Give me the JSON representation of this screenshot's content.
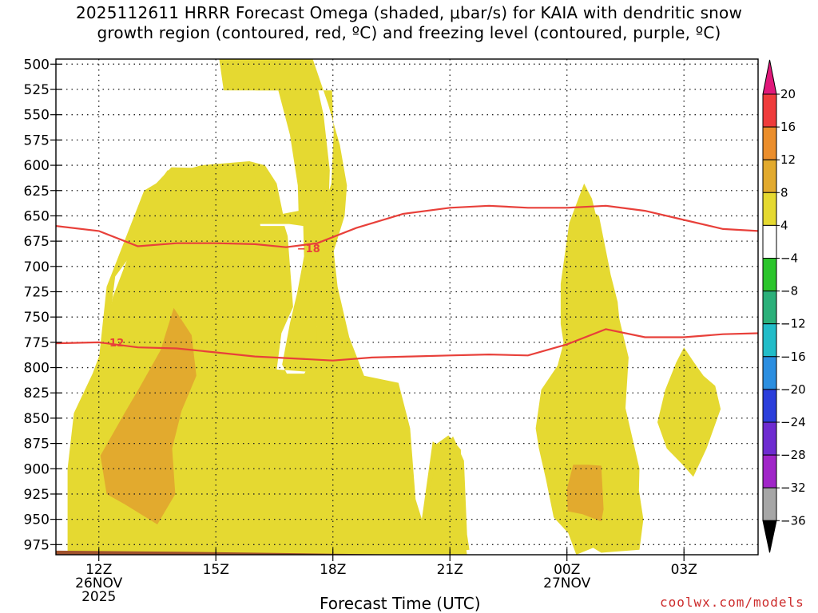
{
  "title_line1": "2025112611 HRRR Forecast Omega (shaded, μbar/s) for KAIA with dendritic snow",
  "title_line2": "growth region (contoured, red, ºC) and freezing level (contoured, purple, ºC)",
  "xlabel": "Forecast Time (UTC)",
  "credit": "coolwx.com/models",
  "chart_data": {
    "type": "contour",
    "x_axis": {
      "unit": "hour",
      "range": [
        10.9,
        28.9
      ],
      "ticks": [
        {
          "value": 12,
          "label": "12Z",
          "sub1": "26NOV",
          "sub2": "2025"
        },
        {
          "value": 15,
          "label": "15Z",
          "sub1": "",
          "sub2": ""
        },
        {
          "value": 18,
          "label": "18Z",
          "sub1": "",
          "sub2": ""
        },
        {
          "value": 21,
          "label": "21Z",
          "sub1": "",
          "sub2": ""
        },
        {
          "value": 24,
          "label": "00Z",
          "sub1": "27NOV",
          "sub2": ""
        },
        {
          "value": 27,
          "label": "03Z",
          "sub1": "",
          "sub2": ""
        }
      ]
    },
    "y_axis": {
      "unit": "hPa",
      "reversed": true,
      "range": [
        495,
        985
      ],
      "ticks": [
        500,
        525,
        550,
        575,
        600,
        625,
        650,
        675,
        700,
        725,
        750,
        775,
        800,
        825,
        850,
        875,
        900,
        925,
        950,
        975
      ]
    },
    "grid": true,
    "terrain_color": "#a0522d",
    "omega_regions": [
      {
        "level": "4 to 8",
        "color": "#e5d931",
        "points": [
          [
            13.12,
            880
          ],
          [
            13.26,
            835
          ],
          [
            13.66,
            790
          ],
          [
            14.74,
            783
          ],
          [
            15.9,
            787
          ],
          [
            15.9,
            800
          ],
          [
            18.02,
            806
          ],
          [
            19.28,
            843
          ],
          [
            19.72,
            878
          ],
          [
            19.84,
            943
          ],
          [
            19.98,
            960
          ],
          [
            20.26,
            955
          ],
          [
            20.56,
            873
          ],
          [
            20.82,
            880
          ],
          [
            21.08,
            868
          ],
          [
            21.36,
            892
          ],
          [
            21.44,
            965
          ],
          [
            21.5,
            980
          ],
          [
            19.55,
            990
          ],
          [
            12.3,
            990
          ],
          [
            11.5,
            983
          ],
          [
            11.42,
            958
          ],
          [
            11.38,
            910
          ],
          [
            11.62,
            840
          ],
          [
            11.88,
            818
          ],
          [
            12.06,
            795
          ],
          [
            12.22,
            770
          ],
          [
            12.42,
            710
          ],
          [
            12.8,
            690
          ],
          [
            13.26,
            645
          ],
          [
            13.52,
            618
          ],
          [
            13.76,
            605
          ],
          [
            14.44,
            605
          ],
          [
            15.86,
            608
          ],
          [
            16.02,
            620
          ],
          [
            16.02,
            658
          ],
          [
            16.88,
            658
          ],
          [
            17.24,
            660
          ],
          [
            17.26,
            690
          ],
          [
            17.08,
            727
          ],
          [
            16.9,
            756
          ],
          [
            16.7,
            797
          ],
          [
            16.82,
            806
          ],
          [
            17.86,
            806
          ],
          [
            17.74,
            790
          ],
          [
            17.56,
            755
          ],
          [
            17.4,
            720
          ],
          [
            17.44,
            690
          ],
          [
            17.7,
            660
          ],
          [
            17.9,
            627
          ],
          [
            17.92,
            605
          ],
          [
            17.76,
            550
          ],
          [
            17.56,
            515
          ],
          [
            17.2,
            493
          ],
          [
            15.08,
            493
          ],
          [
            15.2,
            526
          ],
          [
            16.6,
            526
          ],
          [
            16.9,
            570
          ],
          [
            17.1,
            620
          ],
          [
            17.12,
            645
          ],
          [
            16.72,
            648
          ],
          [
            16.56,
            618
          ],
          [
            16.26,
            600
          ],
          [
            15.86,
            596
          ],
          [
            14.62,
            600
          ],
          [
            13.9,
            608
          ],
          [
            13.16,
            625
          ],
          [
            12.2,
            720
          ],
          [
            11.98,
            800
          ],
          [
            11.68,
            845
          ],
          [
            11.52,
            895
          ],
          [
            11.62,
            960
          ],
          [
            12.22,
            982
          ],
          [
            13.5,
            985
          ],
          [
            14.44,
            980
          ],
          [
            13.86,
            925
          ],
          [
            13.1,
            935
          ],
          [
            13.16,
            885
          ]
        ]
      },
      {
        "level": "4 to 8",
        "color": "#e5d931",
        "points": [
          [
            11.2,
            900
          ],
          [
            11.36,
            845
          ],
          [
            11.84,
            806
          ],
          [
            12.12,
            777
          ],
          [
            12.36,
            730
          ],
          [
            12.76,
            690
          ],
          [
            13.06,
            660
          ],
          [
            13.42,
            620
          ],
          [
            13.86,
            602
          ],
          [
            15.98,
            604
          ],
          [
            16.14,
            660
          ],
          [
            16.76,
            660
          ],
          [
            16.84,
            670
          ],
          [
            16.98,
            740
          ],
          [
            16.68,
            766
          ],
          [
            16.54,
            808
          ],
          [
            17.24,
            808
          ],
          [
            17.58,
            784
          ],
          [
            17.58,
            760
          ],
          [
            17.3,
            720
          ],
          [
            17.28,
            694
          ],
          [
            17.58,
            664
          ],
          [
            17.96,
            618
          ],
          [
            18.02,
            568
          ],
          [
            17.98,
            526
          ],
          [
            16.02,
            526
          ],
          [
            15.52,
            520
          ],
          [
            15.12,
            490
          ],
          [
            17.44,
            490
          ],
          [
            17.88,
            540
          ],
          [
            18.18,
            580
          ],
          [
            18.36,
            620
          ],
          [
            18.3,
            650
          ],
          [
            18.02,
            685
          ],
          [
            18.12,
            720
          ],
          [
            18.42,
            770
          ],
          [
            18.8,
            808
          ],
          [
            19.68,
            815
          ],
          [
            19.98,
            860
          ],
          [
            20.12,
            930
          ],
          [
            20.28,
            950
          ],
          [
            20.58,
            905
          ],
          [
            20.6,
            877
          ],
          [
            20.96,
            867
          ],
          [
            21.28,
            881
          ],
          [
            21.32,
            957
          ],
          [
            21.44,
            985
          ],
          [
            11.2,
            985
          ]
        ]
      },
      {
        "level": "4 to 8",
        "color": "#e5d931",
        "points": [
          [
            23.98,
            922
          ],
          [
            24.08,
            840
          ],
          [
            23.98,
            792
          ],
          [
            23.84,
            757
          ],
          [
            23.84,
            717
          ],
          [
            24.06,
            657
          ],
          [
            24.44,
            618
          ],
          [
            24.64,
            633
          ],
          [
            24.98,
            687
          ],
          [
            25.3,
            735
          ],
          [
            25.44,
            790
          ],
          [
            25.28,
            840
          ],
          [
            25.4,
            866
          ],
          [
            25.76,
            900
          ],
          [
            25.96,
            950
          ],
          [
            25.86,
            980
          ],
          [
            24.88,
            983
          ],
          [
            24.02,
            963
          ],
          [
            23.66,
            948
          ],
          [
            23.46,
            910
          ],
          [
            23.28,
            880
          ],
          [
            23.2,
            860
          ],
          [
            23.34,
            822
          ],
          [
            23.76,
            798
          ],
          [
            24.02,
            760
          ],
          [
            24.18,
            710
          ],
          [
            24.52,
            643
          ],
          [
            24.82,
            650
          ],
          [
            25.08,
            700
          ],
          [
            25.3,
            745
          ],
          [
            25.58,
            790
          ],
          [
            25.5,
            840
          ],
          [
            25.86,
            900
          ],
          [
            25.82,
            960
          ],
          [
            24.24,
            985
          ],
          [
            24.0,
            960
          ]
        ]
      },
      {
        "level": "4 to 8",
        "color": "#e5d931",
        "points": [
          [
            27.0,
            780
          ],
          [
            27.26,
            795
          ],
          [
            27.5,
            808
          ],
          [
            27.8,
            818
          ],
          [
            27.94,
            841
          ],
          [
            27.58,
            880
          ],
          [
            27.24,
            908
          ],
          [
            26.94,
            895
          ],
          [
            26.56,
            880
          ],
          [
            26.32,
            854
          ],
          [
            26.52,
            822
          ],
          [
            26.8,
            795
          ]
        ]
      },
      {
        "level": "8 to 12",
        "color": "#e2aa2e",
        "points": [
          [
            13.92,
            741
          ],
          [
            14.38,
            768
          ],
          [
            14.5,
            808
          ],
          [
            14.12,
            843
          ],
          [
            13.88,
            880
          ],
          [
            13.96,
            925
          ],
          [
            13.5,
            955
          ],
          [
            12.66,
            935
          ],
          [
            12.2,
            925
          ],
          [
            12.04,
            887
          ],
          [
            12.66,
            845
          ],
          [
            13.04,
            820
          ],
          [
            13.58,
            783
          ]
        ]
      },
      {
        "level": "8 to 12",
        "color": "#e2aa2e",
        "points": [
          [
            24.16,
            896
          ],
          [
            24.54,
            896
          ],
          [
            24.88,
            897
          ],
          [
            24.94,
            940
          ],
          [
            24.88,
            952
          ],
          [
            24.4,
            945
          ],
          [
            24.02,
            942
          ],
          [
            24.0,
            920
          ]
        ]
      }
    ],
    "dgz_contours": [
      {
        "value": -18,
        "label": "-18",
        "label_at": [
          17.08,
          682
        ],
        "color": "#e8403a",
        "points": [
          [
            10.9,
            660
          ],
          [
            12.0,
            665
          ],
          [
            13.0,
            680
          ],
          [
            14.0,
            677
          ],
          [
            15.0,
            677
          ],
          [
            16.0,
            678
          ],
          [
            16.8,
            681
          ],
          [
            17.6,
            677
          ],
          [
            18.6,
            662
          ],
          [
            19.8,
            648
          ],
          [
            21.0,
            642
          ],
          [
            22.0,
            640
          ],
          [
            23.0,
            642
          ],
          [
            24.0,
            642
          ],
          [
            25.0,
            640
          ],
          [
            26.0,
            645
          ],
          [
            27.0,
            654
          ],
          [
            28.0,
            663
          ],
          [
            28.9,
            665
          ]
        ]
      },
      {
        "value": -12,
        "label": "-12",
        "label_at": [
          12.05,
          775
        ],
        "color": "#e8403a",
        "points": [
          [
            10.9,
            776
          ],
          [
            12.0,
            775
          ],
          [
            13.0,
            780
          ],
          [
            14.0,
            781
          ],
          [
            15.0,
            785
          ],
          [
            16.0,
            789
          ],
          [
            17.0,
            791
          ],
          [
            18.0,
            793
          ],
          [
            19.0,
            790
          ],
          [
            20.0,
            789
          ],
          [
            21.0,
            788
          ],
          [
            22.0,
            787
          ],
          [
            23.0,
            788
          ],
          [
            24.0,
            777
          ],
          [
            25.0,
            762
          ],
          [
            26.0,
            770
          ],
          [
            27.0,
            770
          ],
          [
            28.0,
            767
          ],
          [
            28.9,
            766
          ]
        ]
      }
    ],
    "colorbar": {
      "levels": [
        {
          "range": "16 to 20",
          "color": "#ef3b3b"
        },
        {
          "range": "12 to 16",
          "color": "#eb8e2c"
        },
        {
          "range": "8 to 12",
          "color": "#e2aa2e"
        },
        {
          "range": "4 to 8",
          "color": "#e5d931"
        },
        {
          "range": "-4 to 4",
          "color": "#ffffff"
        },
        {
          "range": "-8 to -4",
          "color": "#2bc52b"
        },
        {
          "range": "-12 to -8",
          "color": "#2bb07a"
        },
        {
          "range": "-16 to -12",
          "color": "#22bcc8"
        },
        {
          "range": "-20 to -16",
          "color": "#2b8ee0"
        },
        {
          "range": "-24 to -20",
          "color": "#2b3edb"
        },
        {
          "range": "-28 to -24",
          "color": "#6e2bd0"
        },
        {
          "range": "-32 to -28",
          "color": "#a025c8"
        },
        {
          "range": "-36 to -32",
          "color": "#a6a6a6"
        }
      ],
      "over_color": "#e0187a",
      "under_color": "#000000",
      "tick_labels": [
        "20",
        "16",
        "12",
        "8",
        "4",
        "−4",
        "−8",
        "−12",
        "−16",
        "−20",
        "−24",
        "−28",
        "−32",
        "−36"
      ]
    }
  }
}
